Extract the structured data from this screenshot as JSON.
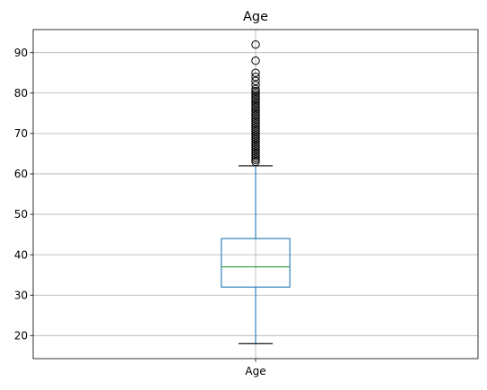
{
  "chart_data": {
    "type": "box",
    "title": "Age",
    "xlabel": "",
    "ylabel": "",
    "ylim": [
      14.3,
      95.7
    ],
    "grid": true,
    "categories": [
      "Age"
    ],
    "yticks": [
      20,
      30,
      40,
      50,
      60,
      70,
      80,
      90
    ],
    "boxes": [
      {
        "category": "Age",
        "whisker_low": 18,
        "q1": 32,
        "median": 37,
        "q3": 44,
        "whisker_high": 62,
        "outliers": [
          63,
          63.5,
          64,
          64.5,
          65,
          65.5,
          66,
          66.5,
          67,
          67.5,
          68,
          68.5,
          69,
          69.5,
          70,
          70.5,
          71,
          71.5,
          72,
          72.5,
          73,
          73.5,
          74,
          74.5,
          75,
          75.5,
          76,
          76.5,
          77,
          77.5,
          78,
          78.5,
          79,
          79.5,
          80,
          80.5,
          81,
          82,
          83,
          84,
          85,
          88,
          92
        ]
      }
    ],
    "colors": {
      "box": "#1f77b4",
      "median": "#2ca02c",
      "whisker": "#1f77b4",
      "cap": "#000000",
      "outlier": "#000000",
      "grid": "#b0b0b0",
      "axes": "#000000"
    }
  }
}
